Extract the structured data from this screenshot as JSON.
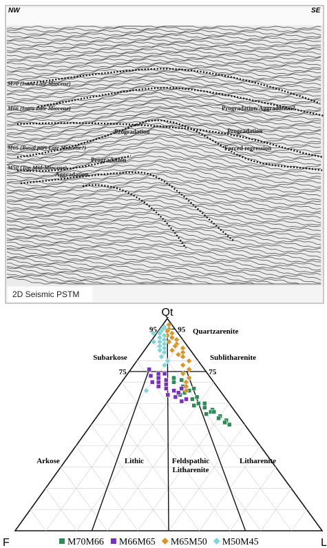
{
  "seismic": {
    "left_label": "NW",
    "right_label": "SE",
    "caption": "2D Seismic PSTM",
    "horizons": [
      "M70 (Intra Late Miocene)",
      "M66 (Intra Late Miocene)",
      "M65 (Basal part Late Miocene?)",
      "M50 (Top Mid-Miocene)"
    ],
    "annotations": [
      "Progradation/Aggradation?",
      "Progradation",
      "Forced regression",
      "Progradation",
      "Progradation",
      "Aggradation"
    ]
  },
  "chart_data": {
    "type": "ternary",
    "vertices": [
      "Qt",
      "F",
      "L"
    ],
    "qt_ticks": [
      95,
      75
    ],
    "fields": [
      "Quartzarenite",
      "Subarkose",
      "Sublitharenite",
      "Arkose",
      "Lithic",
      "Feldspathic Litharenite",
      "Litharenite"
    ],
    "series": [
      {
        "name": "M70M66",
        "color": "#2e8b57",
        "marker": "square",
        "qt": [
          74,
          72,
          70,
          68,
          66,
          65,
          63,
          62,
          60,
          60,
          58,
          57,
          56,
          55,
          54,
          53,
          52,
          51,
          50,
          62,
          67,
          71,
          59,
          56,
          64
        ],
        "f": [
          14,
          12,
          13,
          11,
          10,
          12,
          9,
          11,
          8,
          10,
          9,
          7,
          8,
          10,
          6,
          7,
          5,
          6,
          5,
          13,
          8,
          10,
          12,
          7,
          14
        ]
      },
      {
        "name": "M66M65",
        "color": "#7b2fbf",
        "marker": "square",
        "qt": [
          76,
          74,
          73,
          72,
          71,
          70,
          69,
          68,
          67,
          66,
          65,
          64,
          63,
          62,
          61,
          74,
          70,
          67
        ],
        "f": [
          18,
          16,
          19,
          17,
          15,
          18,
          16,
          19,
          17,
          15,
          14,
          18,
          16,
          13,
          15,
          14,
          20,
          12
        ]
      },
      {
        "name": "M65M50",
        "color": "#d8962a",
        "marker": "diamond",
        "qt": [
          97,
          95,
          94,
          93,
          92,
          91,
          90,
          89,
          88,
          87,
          86,
          85,
          84,
          83,
          82,
          80,
          78,
          76,
          74,
          72,
          70,
          68,
          66,
          90,
          86
        ],
        "f": [
          1,
          2,
          3,
          2,
          4,
          3,
          2,
          5,
          3,
          4,
          2,
          6,
          3,
          5,
          4,
          3,
          6,
          5,
          8,
          7,
          9,
          10,
          11,
          6,
          8
        ]
      },
      {
        "name": "M50M45",
        "color": "#7fd6d8",
        "marker": "diamond",
        "qt": [
          96,
          95,
          94,
          93,
          92,
          91,
          90,
          89,
          88,
          87,
          86,
          85,
          84,
          82,
          80,
          78,
          66,
          93,
          89
        ],
        "f": [
          3,
          4,
          5,
          6,
          5,
          7,
          6,
          8,
          7,
          9,
          8,
          10,
          9,
          11,
          10,
          12,
          24,
          8,
          10
        ]
      }
    ]
  }
}
